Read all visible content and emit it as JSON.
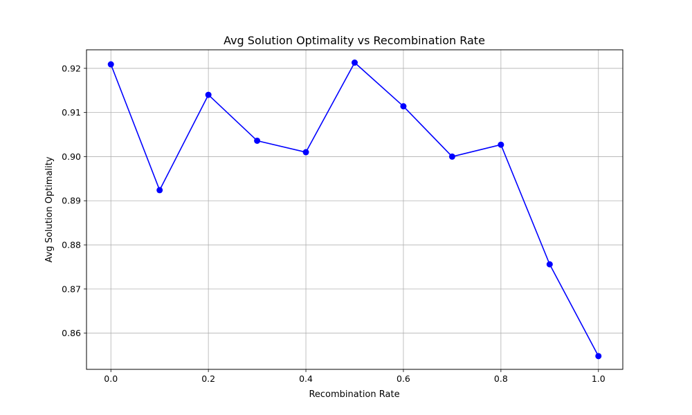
{
  "chart_data": {
    "type": "line",
    "title": "Avg Solution Optimality vs Recombination Rate",
    "xlabel": "Recombination Rate",
    "ylabel": "Avg Solution Optimality",
    "xlim": [
      -0.05,
      1.05
    ],
    "ylim": [
      0.8518,
      0.9242
    ],
    "xticks": [
      0.0,
      0.2,
      0.4,
      0.6,
      0.8,
      1.0
    ],
    "xtick_labels": [
      "0.0",
      "0.2",
      "0.4",
      "0.6",
      "0.8",
      "1.0"
    ],
    "yticks": [
      0.86,
      0.87,
      0.88,
      0.89,
      0.9,
      0.91,
      0.92
    ],
    "ytick_labels": [
      "0.86",
      "0.87",
      "0.88",
      "0.89",
      "0.90",
      "0.91",
      "0.92"
    ],
    "grid": true,
    "legend": false,
    "series": [
      {
        "color": "#0000ff",
        "marker": "circle",
        "x": [
          0.0,
          0.1,
          0.2,
          0.3,
          0.4,
          0.5,
          0.6,
          0.7,
          0.8,
          0.9,
          1.0
        ],
        "y": [
          0.9209,
          0.8924,
          0.914,
          0.9036,
          0.901,
          0.9213,
          0.9114,
          0.9,
          0.9027,
          0.8756,
          0.8548
        ]
      }
    ]
  }
}
